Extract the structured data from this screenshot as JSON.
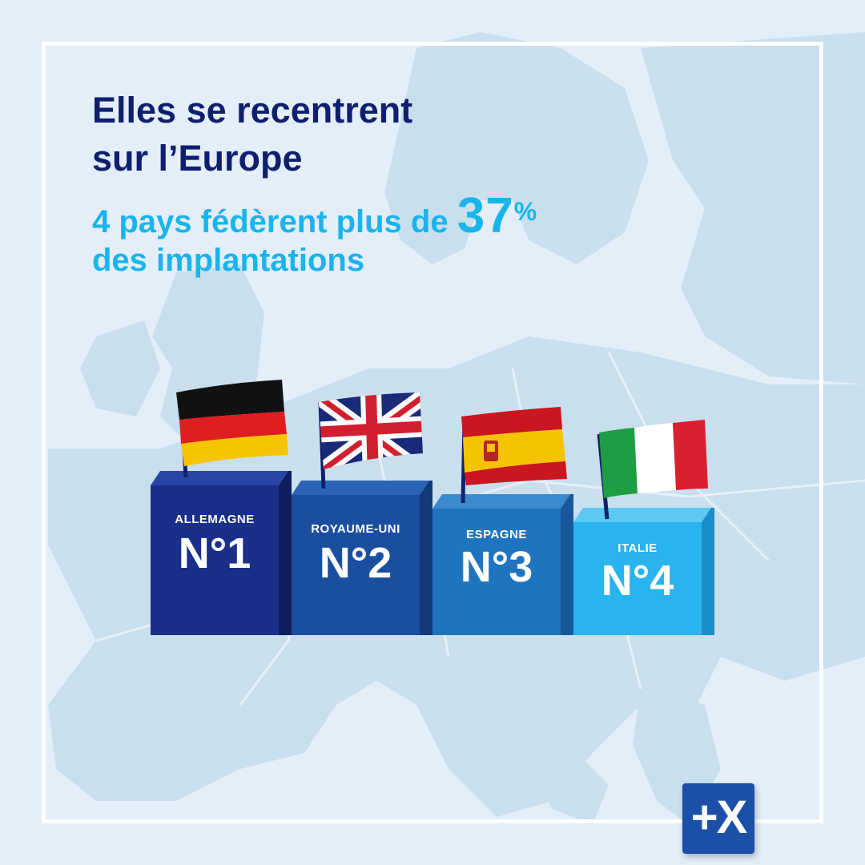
{
  "headline": {
    "line1": "Elles se recentrent",
    "line2": "sur l’Europe"
  },
  "subheadline": {
    "number": "4",
    "text_before": " pays fédèrent plus de ",
    "big_value": "37",
    "percent_sign": "%",
    "line2": "des implantations"
  },
  "podium": [
    {
      "country": "ALLEMAGNE",
      "rank": "N°1",
      "color": "#1a2f8a",
      "flag": "germany"
    },
    {
      "country": "ROYAUME-UNI",
      "rank": "N°2",
      "color": "#1a4fa0",
      "flag": "united-kingdom"
    },
    {
      "country": "ESPAGNE",
      "rank": "N°3",
      "color": "#1f74bf",
      "flag": "spain"
    },
    {
      "country": "ITALIE",
      "rank": "N°4",
      "color": "#29b3ef",
      "flag": "italy"
    }
  ],
  "logo": {
    "text": "+X"
  },
  "colors": {
    "background": "#e3eef8",
    "map": "#c9dfee",
    "title": "#0f1f6e",
    "accent": "#1ab4ec"
  }
}
